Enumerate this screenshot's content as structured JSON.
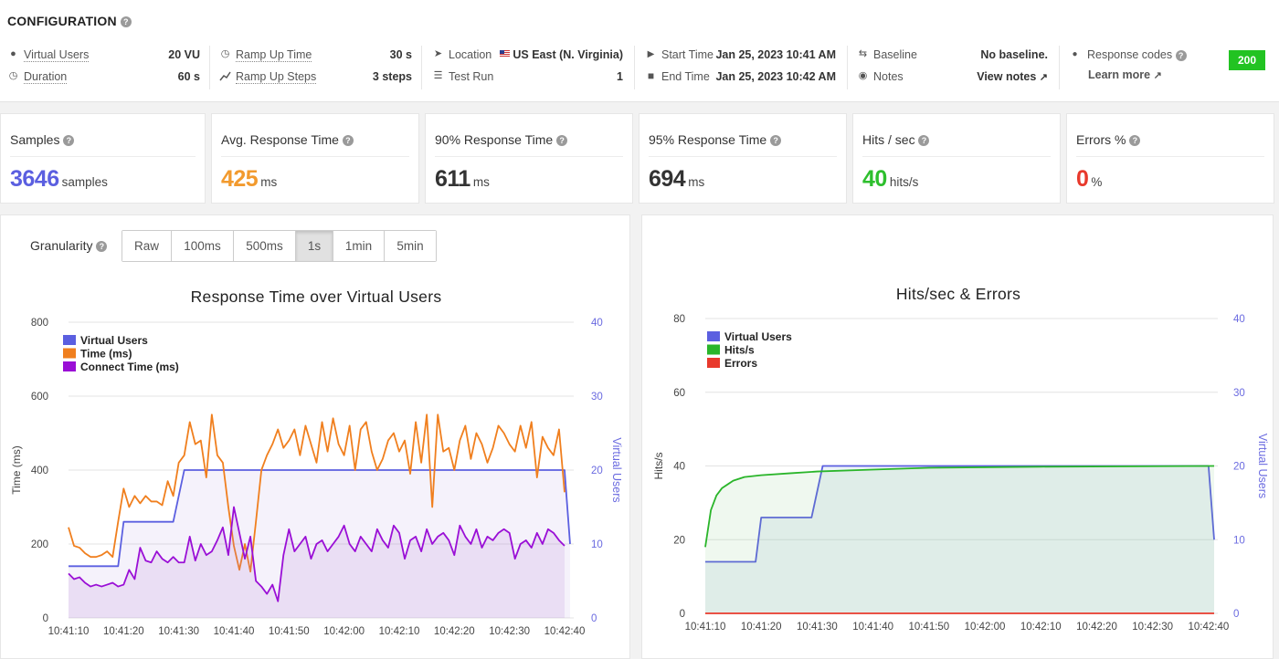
{
  "config": {
    "title": "CONFIGURATION",
    "virtual_users_label": "Virtual Users",
    "virtual_users_value": "20 VU",
    "duration_label": "Duration",
    "duration_value": "60 s",
    "ramp_up_time_label": "Ramp Up Time",
    "ramp_up_time_value": "30 s",
    "ramp_up_steps_label": "Ramp Up Steps",
    "ramp_up_steps_value": "3 steps",
    "location_label": "Location",
    "location_value": "US East (N. Virginia)",
    "test_run_label": "Test Run",
    "test_run_value": "1",
    "start_time_label": "Start Time",
    "start_time_value": "Jan 25, 2023 10:41 AM",
    "end_time_label": "End Time",
    "end_time_value": "Jan 25, 2023 10:42 AM",
    "baseline_label": "Baseline",
    "baseline_value": "No baseline.",
    "notes_label": "Notes",
    "view_notes_link": "View notes",
    "response_codes_label": "Response codes",
    "learn_more_link": "Learn more",
    "response_code_badge": "200"
  },
  "kpis": [
    {
      "label": "Samples",
      "value": "3646",
      "unit": "samples",
      "color": "#5b5fe0"
    },
    {
      "label": "Avg. Response Time",
      "value": "425",
      "unit": "ms",
      "color": "#f29a2e"
    },
    {
      "label": "90% Response Time",
      "value": "611",
      "unit": "ms",
      "color": "#333333"
    },
    {
      "label": "95% Response Time",
      "value": "694",
      "unit": "ms",
      "color": "#333333"
    },
    {
      "label": "Hits / sec",
      "value": "40",
      "unit": "hits/s",
      "color": "#2dbf2d"
    },
    {
      "label": "Errors %",
      "value": "0",
      "unit": "%",
      "color": "#e8392c"
    }
  ],
  "granularity": {
    "label": "Granularity",
    "options": [
      "Raw",
      "100ms",
      "500ms",
      "1s",
      "1min",
      "5min"
    ],
    "selected": "1s"
  },
  "colors": {
    "virtual_users": "#5b5fe0",
    "time": "#f07f1e",
    "connect_time": "#9a0fd6",
    "hits": "#2ab52a",
    "errors": "#e8392c"
  },
  "chart_data": [
    {
      "type": "line",
      "title": "Response Time over Virtual Users",
      "ylabel": "Time (ms)",
      "y2label": "Virtual Users",
      "ylim": [
        0,
        800
      ],
      "y2lim": [
        0,
        40
      ],
      "yticks": [
        "0",
        "200",
        "400",
        "600",
        "800"
      ],
      "y2ticks": [
        "0",
        "10",
        "20",
        "30",
        "40"
      ],
      "xticks": [
        "10:41:10",
        "10:41:20",
        "10:41:30",
        "10:41:40",
        "10:41:50",
        "10:42:00",
        "10:42:10",
        "10:42:20",
        "10:42:30",
        "10:42:40"
      ],
      "x_start": "10:41:10",
      "x_end": "10:42:40",
      "legend_position": "top-left",
      "series": [
        {
          "name": "Virtual Users",
          "axis": "right",
          "points": [
            [
              0,
              7
            ],
            [
              9,
              7
            ],
            [
              10,
              13
            ],
            [
              19,
              13
            ],
            [
              21,
              20
            ],
            [
              90,
              20
            ],
            [
              91,
              10
            ]
          ]
        },
        {
          "name": "Time (ms)",
          "axis": "left",
          "values": [
            245,
            195,
            190,
            175,
            165,
            165,
            170,
            180,
            165,
            260,
            350,
            300,
            330,
            310,
            330,
            315,
            315,
            305,
            370,
            330,
            420,
            440,
            530,
            470,
            480,
            380,
            550,
            440,
            420,
            300,
            195,
            130,
            200,
            125,
            260,
            400,
            440,
            470,
            510,
            460,
            480,
            510,
            440,
            520,
            470,
            420,
            530,
            450,
            540,
            470,
            440,
            520,
            400,
            510,
            530,
            450,
            400,
            430,
            480,
            500,
            450,
            480,
            390,
            530,
            420,
            550,
            300,
            550,
            450,
            460,
            400,
            480,
            520,
            430,
            500,
            470,
            420,
            460,
            520,
            500,
            470,
            450,
            520,
            460,
            530,
            380,
            490,
            460,
            440,
            510,
            340
          ]
        },
        {
          "name": "Connect Time (ms)",
          "axis": "left",
          "values": [
            120,
            105,
            110,
            95,
            85,
            90,
            85,
            90,
            95,
            85,
            90,
            130,
            105,
            190,
            155,
            150,
            180,
            160,
            150,
            165,
            150,
            150,
            220,
            155,
            200,
            170,
            180,
            210,
            245,
            170,
            300,
            230,
            160,
            220,
            100,
            85,
            65,
            90,
            45,
            170,
            240,
            180,
            200,
            220,
            160,
            200,
            210,
            180,
            200,
            220,
            250,
            200,
            180,
            220,
            200,
            180,
            240,
            210,
            190,
            250,
            230,
            160,
            210,
            220,
            180,
            240,
            200,
            220,
            230,
            210,
            170,
            250,
            220,
            200,
            240,
            190,
            220,
            210,
            230,
            240,
            230,
            160,
            200,
            210,
            190,
            230,
            200,
            240,
            230,
            210,
            195
          ]
        }
      ]
    },
    {
      "type": "line",
      "title": "Hits/sec & Errors",
      "ylabel": "Hits/s",
      "y2label": "Virtual Users",
      "ylim": [
        0,
        80
      ],
      "y2lim": [
        0,
        40
      ],
      "yticks": [
        "0",
        "20",
        "40",
        "60",
        "80"
      ],
      "y2ticks": [
        "0",
        "10",
        "20",
        "30",
        "40"
      ],
      "xticks": [
        "10:41:10",
        "10:41:20",
        "10:41:30",
        "10:41:40",
        "10:41:50",
        "10:42:00",
        "10:42:10",
        "10:42:20",
        "10:42:30",
        "10:42:40"
      ],
      "x_start": "10:41:10",
      "x_end": "10:42:40",
      "legend_position": "top-left",
      "series": [
        {
          "name": "Virtual Users",
          "axis": "right",
          "points": [
            [
              0,
              7
            ],
            [
              9,
              7
            ],
            [
              10,
              13
            ],
            [
              19,
              13
            ],
            [
              21,
              20
            ],
            [
              90,
              20
            ],
            [
              91,
              10
            ]
          ]
        },
        {
          "name": "Hits/s",
          "axis": "left",
          "points": [
            [
              0,
              18
            ],
            [
              1,
              28
            ],
            [
              2,
              32
            ],
            [
              3,
              34
            ],
            [
              4,
              35
            ],
            [
              5,
              36
            ],
            [
              6,
              36.5
            ],
            [
              7,
              37
            ],
            [
              10,
              37.5
            ],
            [
              15,
              38
            ],
            [
              20,
              38.5
            ],
            [
              30,
              39
            ],
            [
              40,
              39.5
            ],
            [
              60,
              39.8
            ],
            [
              91,
              40
            ]
          ]
        },
        {
          "name": "Errors",
          "axis": "left",
          "points": [
            [
              0,
              0
            ],
            [
              91,
              0
            ]
          ]
        }
      ]
    }
  ]
}
